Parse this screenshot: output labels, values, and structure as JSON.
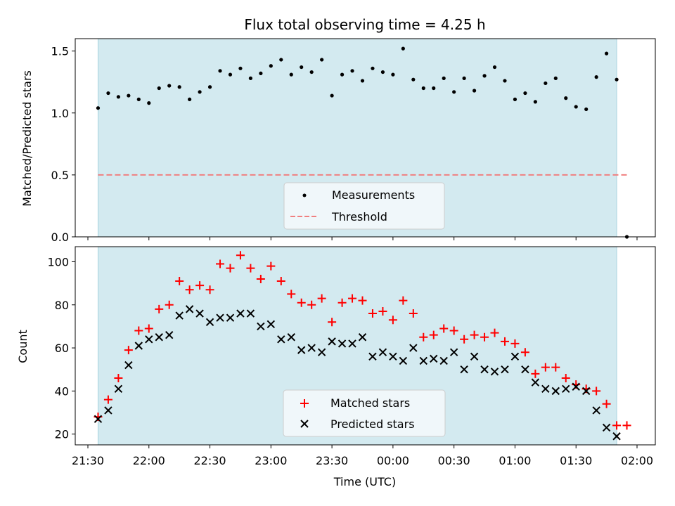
{
  "colors": {
    "shade": "#d3eaf0",
    "shade_edge": "#a9d4e0",
    "measurement": "#000000",
    "threshold": "#f08080",
    "matched": "#ff0000",
    "predicted": "#000000"
  },
  "chart_data": [
    {
      "type": "scatter",
      "title": "Flux total observing time = 4.25 h",
      "xlabel": "",
      "ylabel": "Matched/Predicted stars",
      "ylim": [
        0,
        1.6
      ],
      "yticks": [
        0.0,
        0.5,
        1.0,
        1.5
      ],
      "ytick_labels": [
        "0.0",
        "0.5",
        "1.0",
        "1.5"
      ],
      "shaded_span": [
        "21:35",
        "01:50"
      ],
      "threshold": 0.5,
      "legend": [
        "Measurements",
        "Threshold"
      ],
      "legend_location": "lower-center",
      "series": [
        {
          "name": "Measurements",
          "x": [
            "21:35",
            "21:40",
            "21:45",
            "21:50",
            "21:55",
            "22:00",
            "22:05",
            "22:10",
            "22:15",
            "22:20",
            "22:25",
            "22:30",
            "22:35",
            "22:40",
            "22:45",
            "22:50",
            "22:55",
            "23:00",
            "23:05",
            "23:10",
            "23:15",
            "23:20",
            "23:25",
            "23:30",
            "23:35",
            "23:40",
            "23:45",
            "23:50",
            "23:55",
            "00:00",
            "00:05",
            "00:10",
            "00:15",
            "00:20",
            "00:25",
            "00:30",
            "00:35",
            "00:40",
            "00:45",
            "00:50",
            "00:55",
            "01:00",
            "01:05",
            "01:10",
            "01:15",
            "01:20",
            "01:25",
            "01:30",
            "01:35",
            "01:40",
            "01:45",
            "01:50",
            "01:55"
          ],
          "y": [
            1.04,
            1.16,
            1.13,
            1.14,
            1.11,
            1.08,
            1.2,
            1.22,
            1.21,
            1.11,
            1.17,
            1.21,
            1.34,
            1.31,
            1.36,
            1.28,
            1.32,
            1.38,
            1.43,
            1.31,
            1.37,
            1.33,
            1.43,
            1.14,
            1.31,
            1.34,
            1.26,
            1.36,
            1.33,
            1.31,
            1.52,
            1.27,
            1.2,
            1.2,
            1.28,
            1.17,
            1.28,
            1.18,
            1.3,
            1.37,
            1.26,
            1.11,
            1.16,
            1.09,
            1.24,
            1.28,
            1.12,
            1.05,
            1.03,
            1.29,
            1.48,
            1.27,
            0.0
          ]
        }
      ]
    },
    {
      "type": "scatter",
      "title": "",
      "xlabel": "Time (UTC)",
      "ylabel": "Count",
      "ylim": [
        15,
        107
      ],
      "yticks": [
        20,
        40,
        60,
        80,
        100
      ],
      "ytick_labels": [
        "20",
        "40",
        "60",
        "80",
        "100"
      ],
      "xtick_labels": [
        "21:30",
        "22:00",
        "22:30",
        "23:00",
        "23:30",
        "00:00",
        "00:30",
        "01:00",
        "01:30",
        "02:00"
      ],
      "shaded_span": [
        "21:35",
        "01:50"
      ],
      "legend": [
        "Matched stars",
        "Predicted stars"
      ],
      "legend_location": "lower-center",
      "series": [
        {
          "name": "Matched stars",
          "x": [
            "21:35",
            "21:40",
            "21:45",
            "21:50",
            "21:55",
            "22:00",
            "22:05",
            "22:10",
            "22:15",
            "22:20",
            "22:25",
            "22:30",
            "22:35",
            "22:40",
            "22:45",
            "22:50",
            "22:55",
            "23:00",
            "23:05",
            "23:10",
            "23:15",
            "23:20",
            "23:25",
            "23:30",
            "23:35",
            "23:40",
            "23:45",
            "23:50",
            "23:55",
            "00:00",
            "00:05",
            "00:10",
            "00:15",
            "00:20",
            "00:25",
            "00:30",
            "00:35",
            "00:40",
            "00:45",
            "00:50",
            "00:55",
            "01:00",
            "01:05",
            "01:10",
            "01:15",
            "01:20",
            "01:25",
            "01:30",
            "01:35",
            "01:40",
            "01:45",
            "01:50",
            "01:55"
          ],
          "y": [
            28,
            36,
            46,
            59,
            68,
            69,
            78,
            80,
            91,
            87,
            89,
            87,
            99,
            97,
            103,
            97,
            92,
            98,
            91,
            85,
            81,
            80,
            83,
            72,
            81,
            83,
            82,
            76,
            77,
            73,
            82,
            76,
            65,
            66,
            69,
            68,
            64,
            66,
            65,
            67,
            63,
            62,
            58,
            48,
            51,
            51,
            46,
            43,
            41,
            40,
            34,
            24,
            24
          ]
        },
        {
          "name": "Predicted stars",
          "x": [
            "21:35",
            "21:40",
            "21:45",
            "21:50",
            "21:55",
            "22:00",
            "22:05",
            "22:10",
            "22:15",
            "22:20",
            "22:25",
            "22:30",
            "22:35",
            "22:40",
            "22:45",
            "22:50",
            "22:55",
            "23:00",
            "23:05",
            "23:10",
            "23:15",
            "23:20",
            "23:25",
            "23:30",
            "23:35",
            "23:40",
            "23:45",
            "23:50",
            "23:55",
            "00:00",
            "00:05",
            "00:10",
            "00:15",
            "00:20",
            "00:25",
            "00:30",
            "00:35",
            "00:40",
            "00:45",
            "00:50",
            "00:55",
            "01:00",
            "01:05",
            "01:10",
            "01:15",
            "01:20",
            "01:25",
            "01:30",
            "01:35",
            "01:40",
            "01:45",
            "01:50"
          ],
          "y": [
            27,
            31,
            41,
            52,
            61,
            64,
            65,
            66,
            75,
            78,
            76,
            72,
            74,
            74,
            76,
            76,
            70,
            71,
            64,
            65,
            59,
            60,
            58,
            63,
            62,
            62,
            65,
            56,
            58,
            56,
            54,
            60,
            54,
            55,
            54,
            58,
            50,
            56,
            50,
            49,
            50,
            56,
            50,
            44,
            41,
            40,
            41,
            42,
            40,
            31,
            23,
            19
          ]
        }
      ]
    }
  ]
}
